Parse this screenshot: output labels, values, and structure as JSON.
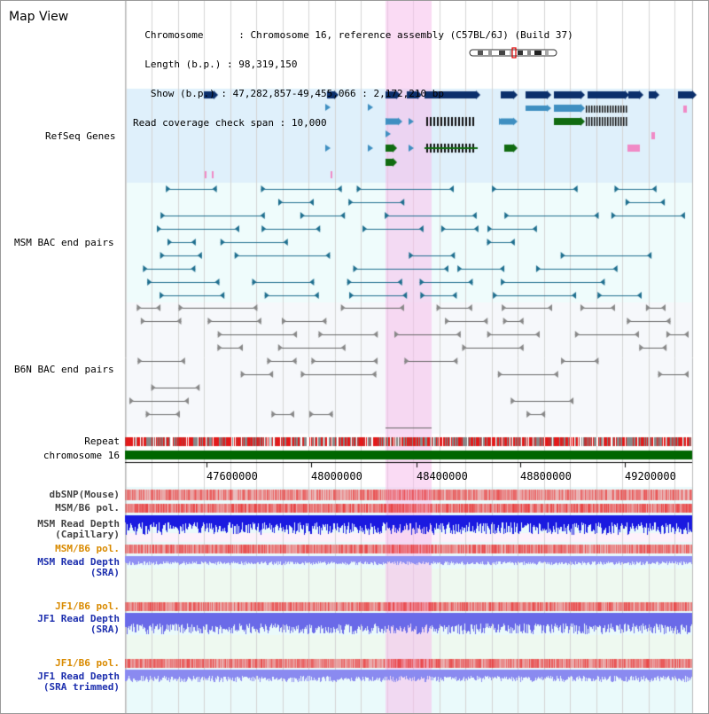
{
  "page_title": "Map View",
  "info": {
    "chromosome_label": "Chromosome",
    "chromosome_value": "Chromosome 16, reference assembly (C57BL/6J) (Build 37)",
    "length_label": "Length (b.p.)",
    "length_value": "98,319,150",
    "show_label": "Show (b.p.)",
    "show_value": "47,282,857-49,455,066 : 2,172,210 bp",
    "coverage_label": "Read coverage check span",
    "coverage_value": "10,000"
  },
  "colors": {
    "refseq_bg": "#dff0fb",
    "bac_bg": "#effcfc",
    "b6n_bg": "#f6f8fb",
    "highlight": "#f7d7f2",
    "refseq_dark": "#0b2f6b",
    "refseq_mid": "#3f8fc1",
    "refseq_green": "#116b11",
    "msm_line": "#1f6f8f",
    "b6n_line": "#666666",
    "chrom_green": "#006600",
    "label_blue": "#1d2fae",
    "label_teal": "#156f8a",
    "label_orange": "#d98a00",
    "label_gray": "#444444"
  },
  "tracks": {
    "refseq": "RefSeq Genes",
    "msm_bac": "MSM BAC end pairs",
    "b6n_bac": "B6N BAC end pairs",
    "repeat": "Repeat",
    "chromosome": "chromosome 16",
    "dbsnp": "dbSNP(Mouse)",
    "msm_b6_pol_1": "MSM/B6 pol.",
    "msm_depth_cap_1": "MSM Read Depth",
    "msm_depth_cap_2": "(Capillary)",
    "msm_b6_pol_2": "MSM/B6 pol.",
    "msm_depth_sra_1": "MSM Read Depth",
    "msm_depth_sra_2": "(SRA)",
    "jf1_pol_1": "JF1/B6 pol.",
    "jf1_depth_sra_1": "JF1 Read Depth",
    "jf1_depth_sra_2": "(SRA)",
    "jf1_pol_2": "JF1/B6 pol.",
    "jf1_trim_1": "JF1 Read Depth",
    "jf1_trim_2": "(SRA trimmed)"
  },
  "axis": {
    "ticks": [
      "47600000",
      "48000000",
      "48400000",
      "48800000",
      "49200000"
    ]
  },
  "icons": [
    "chromosome-ideogram-icon",
    "gene-arrow-icon",
    "bac-end-marker-icon"
  ]
}
